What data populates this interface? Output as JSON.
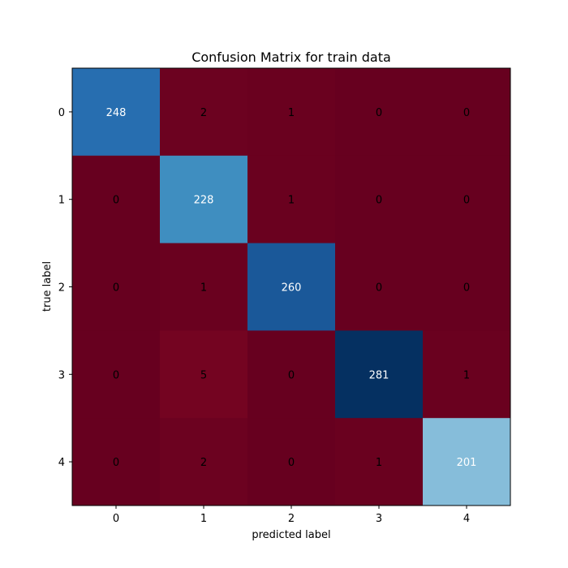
{
  "chart_data": {
    "type": "heatmap",
    "title": "Confusion Matrix for train data",
    "xlabel": "predicted label",
    "ylabel": "true label",
    "x_categories": [
      "0",
      "1",
      "2",
      "3",
      "4"
    ],
    "y_categories": [
      "0",
      "1",
      "2",
      "3",
      "4"
    ],
    "values": [
      [
        248,
        2,
        1,
        0,
        0
      ],
      [
        0,
        228,
        1,
        0,
        0
      ],
      [
        0,
        1,
        260,
        0,
        0
      ],
      [
        0,
        5,
        0,
        281,
        1
      ],
      [
        0,
        2,
        0,
        1,
        201
      ]
    ],
    "colormap": "RdBu",
    "value_range": [
      0,
      281
    ],
    "grid": false
  }
}
